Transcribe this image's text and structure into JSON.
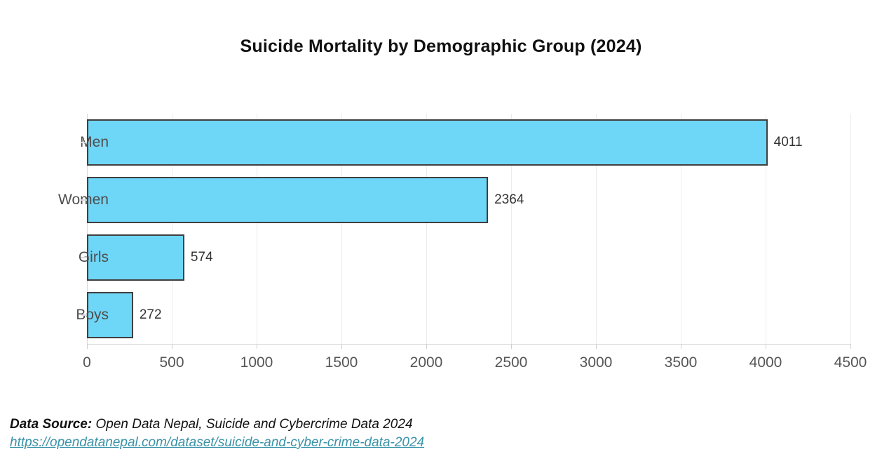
{
  "title": "Suicide Mortality by Demographic Group (2024)",
  "chart_data": {
    "type": "bar",
    "orientation": "horizontal",
    "title": "Suicide Mortality by Demographic Group (2024)",
    "categories": [
      "Men",
      "Women",
      "Girls",
      "Boys"
    ],
    "values": [
      4011,
      2364,
      574,
      272
    ],
    "value_labels": [
      "4011",
      "2364",
      "574",
      "272"
    ],
    "xlim": [
      0,
      4500
    ],
    "xticks": [
      0,
      500,
      1000,
      1500,
      2000,
      2500,
      3000,
      3500,
      4000,
      4500
    ],
    "xlabel": "",
    "ylabel": "",
    "grid": true,
    "legend": false,
    "bar_color": "#6ed6f7",
    "bar_edge_color": "#3f3f3f"
  },
  "footer": {
    "source_label": "Data Source:",
    "source_text": " Open Data Nepal, Suicide and Cybercrime Data 2024",
    "link_text": "https://opendatanepal.com/dataset/suicide-and-cyber-crime-data-2024",
    "link_color": "#3a93a8"
  }
}
